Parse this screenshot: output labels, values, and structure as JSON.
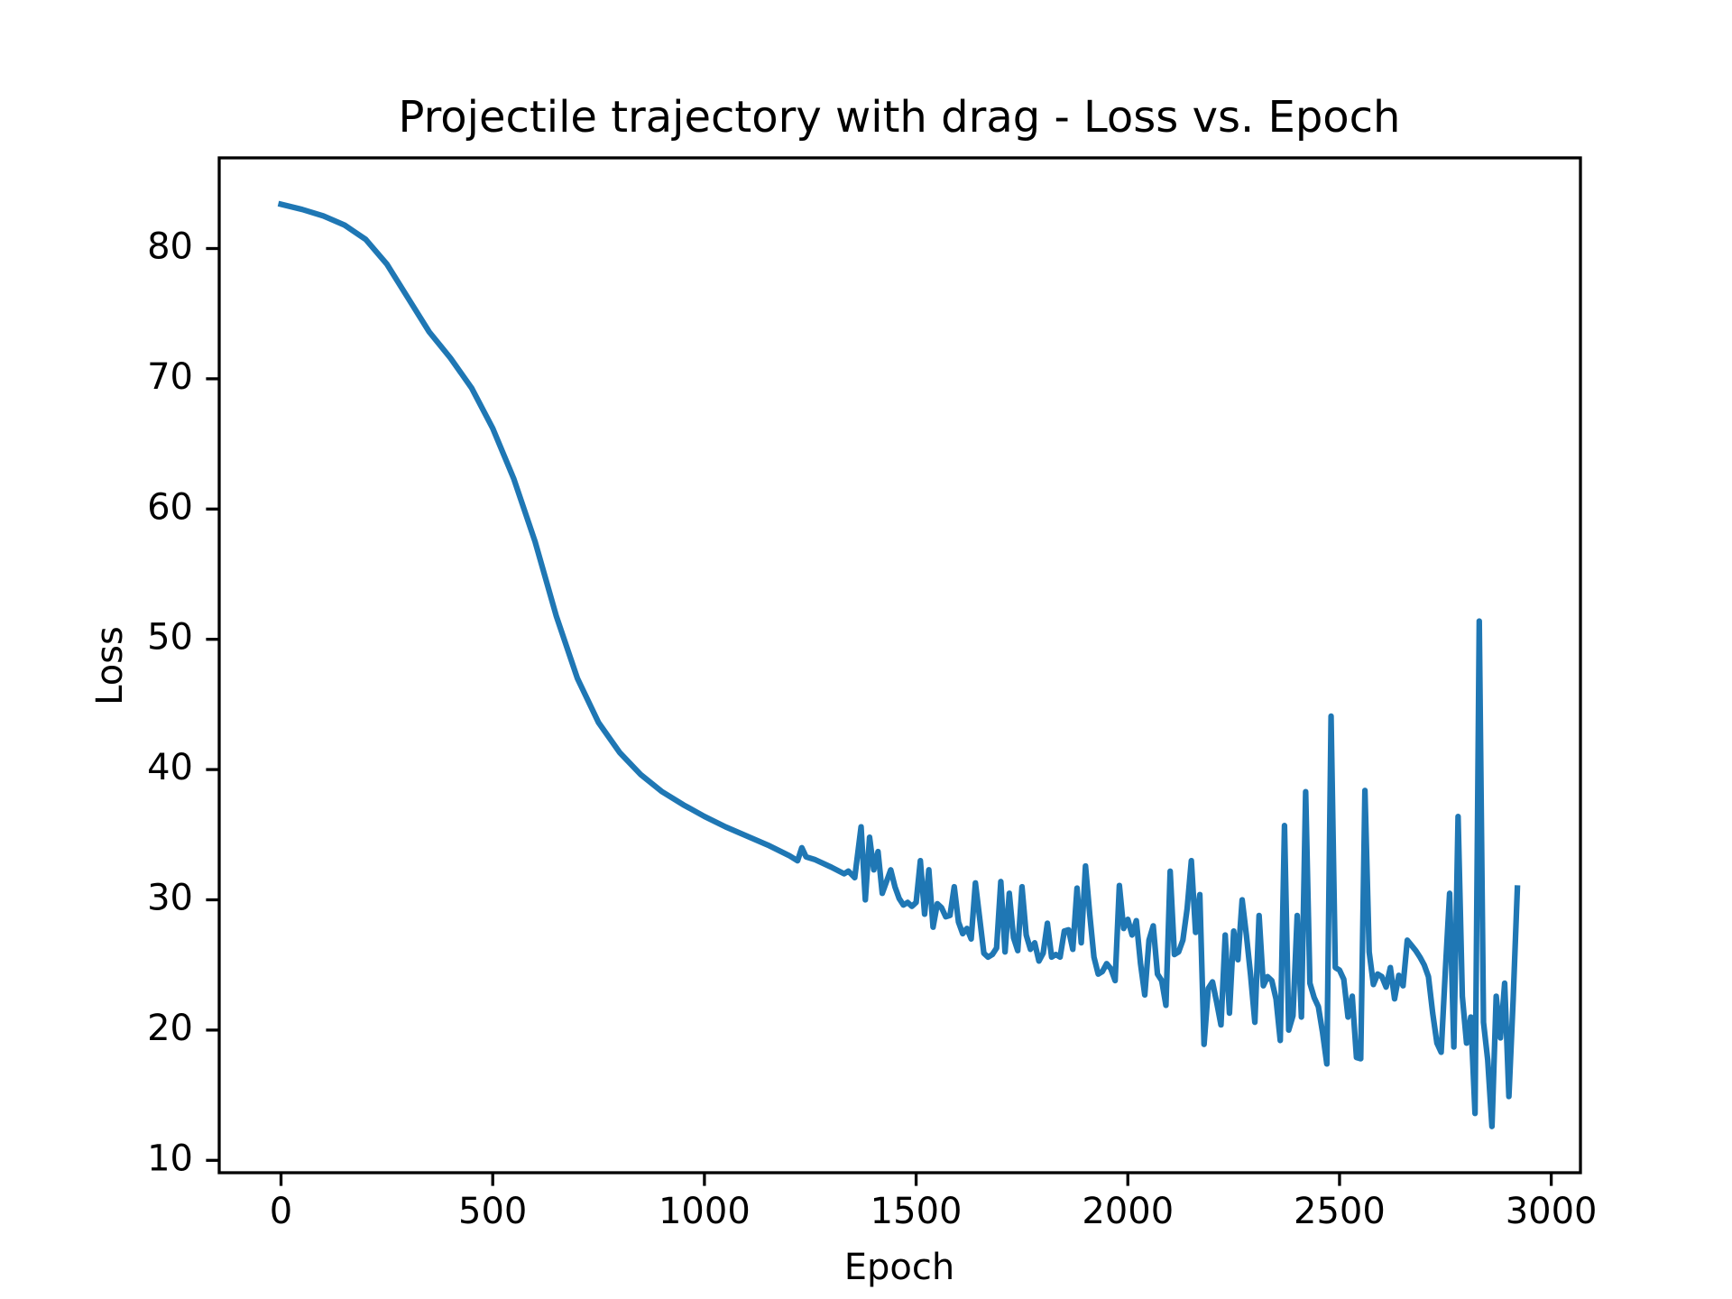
{
  "chart_data": {
    "type": "line",
    "title": "Projectile trajectory with drag - Loss vs. Epoch",
    "xlabel": "Epoch",
    "ylabel": "Loss",
    "xlim": [
      -146,
      3069
    ],
    "ylim": [
      9.05,
      86.96
    ],
    "xticks": [
      0,
      500,
      1000,
      1500,
      2000,
      2500,
      3000
    ],
    "yticks": [
      10,
      20,
      30,
      40,
      50,
      60,
      70,
      80
    ],
    "grid": false,
    "series": [
      {
        "name": "Loss",
        "color": "#1f77b4",
        "x": [
          0,
          50,
          100,
          150,
          200,
          250,
          300,
          350,
          400,
          450,
          500,
          550,
          600,
          650,
          700,
          750,
          800,
          850,
          900,
          950,
          1000,
          1050,
          1100,
          1150,
          1200,
          1220,
          1230,
          1240,
          1260,
          1300,
          1330,
          1340,
          1355,
          1370,
          1380,
          1390,
          1400,
          1410,
          1420,
          1440,
          1450,
          1460,
          1470,
          1480,
          1490,
          1500,
          1510,
          1520,
          1530,
          1540,
          1550,
          1560,
          1570,
          1580,
          1590,
          1600,
          1610,
          1620,
          1630,
          1640,
          1660,
          1670,
          1680,
          1690,
          1700,
          1710,
          1720,
          1730,
          1740,
          1750,
          1760,
          1770,
          1780,
          1790,
          1800,
          1810,
          1820,
          1830,
          1840,
          1850,
          1860,
          1870,
          1880,
          1890,
          1900,
          1910,
          1920,
          1930,
          1940,
          1950,
          1960,
          1970,
          1980,
          1990,
          2000,
          2010,
          2020,
          2030,
          2040,
          2050,
          2060,
          2070,
          2080,
          2090,
          2100,
          2110,
          2120,
          2130,
          2140,
          2150,
          2160,
          2170,
          2180,
          2190,
          2200,
          2210,
          2220,
          2230,
          2240,
          2250,
          2260,
          2270,
          2280,
          2290,
          2300,
          2310,
          2320,
          2330,
          2340,
          2350,
          2360,
          2370,
          2380,
          2390,
          2400,
          2410,
          2420,
          2430,
          2440,
          2450,
          2460,
          2470,
          2480,
          2490,
          2500,
          2510,
          2520,
          2530,
          2540,
          2550,
          2560,
          2570,
          2580,
          2590,
          2600,
          2610,
          2620,
          2630,
          2640,
          2650,
          2660,
          2670,
          2680,
          2690,
          2700,
          2710,
          2720,
          2730,
          2740,
          2750,
          2760,
          2770,
          2780,
          2790,
          2800,
          2810,
          2820,
          2830,
          2840,
          2850,
          2860,
          2870,
          2880,
          2890,
          2900,
          2910,
          2920
        ],
        "values": [
          83.4,
          83.0,
          82.5,
          81.8,
          80.7,
          78.8,
          76.2,
          73.6,
          71.6,
          69.3,
          66.2,
          62.3,
          57.5,
          51.8,
          47.0,
          43.6,
          41.3,
          39.6,
          38.3,
          37.3,
          36.4,
          35.6,
          34.9,
          34.2,
          33.4,
          33.0,
          34.0,
          33.3,
          33.1,
          32.5,
          32.0,
          32.2,
          31.7,
          35.6,
          30.0,
          34.8,
          32.3,
          33.7,
          30.5,
          32.3,
          31.0,
          30.1,
          29.6,
          29.8,
          29.5,
          29.8,
          33.0,
          28.9,
          32.3,
          27.9,
          29.7,
          29.4,
          28.7,
          28.8,
          31.0,
          28.3,
          27.4,
          27.8,
          27.0,
          31.3,
          25.9,
          25.6,
          25.8,
          26.3,
          31.4,
          26.0,
          30.5,
          27.1,
          26.1,
          31.0,
          27.3,
          26.2,
          26.7,
          25.3,
          25.9,
          28.2,
          25.6,
          25.8,
          25.6,
          27.6,
          27.7,
          26.2,
          30.9,
          26.7,
          32.6,
          28.9,
          25.6,
          24.3,
          24.5,
          25.1,
          24.7,
          23.8,
          31.1,
          27.8,
          28.5,
          27.3,
          28.4,
          25.1,
          22.7,
          26.9,
          28.0,
          24.3,
          23.8,
          21.9,
          32.2,
          25.8,
          26.0,
          26.9,
          29.3,
          33.0,
          27.5,
          30.4,
          18.9,
          23.2,
          23.7,
          22.1,
          20.4,
          27.3,
          21.3,
          27.6,
          25.4,
          30.0,
          27.3,
          24.2,
          20.6,
          28.8,
          23.4,
          24.1,
          23.8,
          22.4,
          19.2,
          35.7,
          20.0,
          21.1,
          28.8,
          21.0,
          38.3,
          23.6,
          22.5,
          21.8,
          19.8,
          17.4,
          44.1,
          24.8,
          24.6,
          23.9,
          21.0,
          22.6,
          17.9,
          17.8,
          38.4,
          26.0,
          23.5,
          24.3,
          24.1,
          23.3,
          24.8,
          22.4,
          24.2,
          23.4,
          26.9,
          26.5,
          26.1,
          25.6,
          25.0,
          24.1,
          21.3,
          19.0,
          18.3,
          24.6,
          30.5,
          18.7,
          36.4,
          22.6,
          19.0,
          21.0,
          13.6,
          51.4,
          20.6,
          17.7,
          12.6,
          22.6,
          19.4,
          23.6,
          14.9,
          22.3,
          30.9
        ]
      }
    ]
  }
}
